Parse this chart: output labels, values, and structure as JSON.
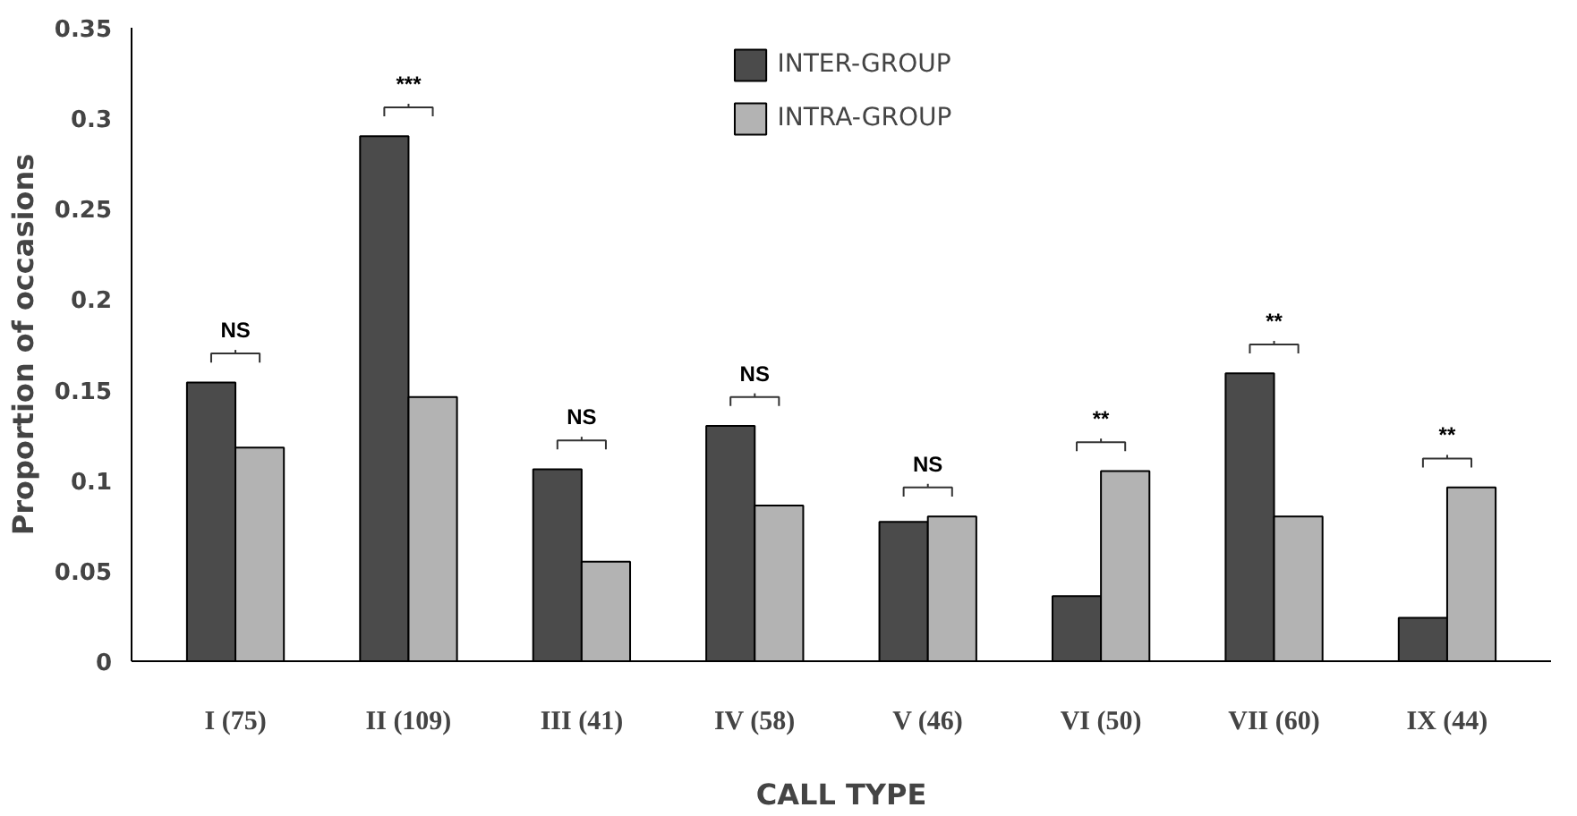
{
  "chart_data": {
    "type": "bar",
    "xlabel": "CALL TYPE",
    "ylabel": "Proportion of occasions",
    "categories": [
      "I (75)",
      "II (109)",
      "III (41)",
      "IV (58)",
      "V (46)",
      "VI (50)",
      "VII (60)",
      "IX (44)"
    ],
    "series": [
      {
        "name": "INTER-GROUP",
        "color": "#4b4b4b",
        "values": [
          0.154,
          0.29,
          0.106,
          0.13,
          0.077,
          0.036,
          0.159,
          0.024
        ]
      },
      {
        "name": "INTRA-GROUP",
        "color": "#b3b3b3",
        "values": [
          0.118,
          0.146,
          0.055,
          0.086,
          0.08,
          0.105,
          0.08,
          0.096
        ]
      }
    ],
    "ylim": [
      0,
      0.35
    ],
    "yticks": [
      0,
      0.05,
      0.1,
      0.15,
      0.2,
      0.25,
      0.3,
      0.35
    ],
    "grid": false,
    "legend": "top",
    "annotations": [
      "NS",
      "***",
      "NS",
      "NS",
      "NS",
      "**",
      "**",
      "**"
    ]
  }
}
